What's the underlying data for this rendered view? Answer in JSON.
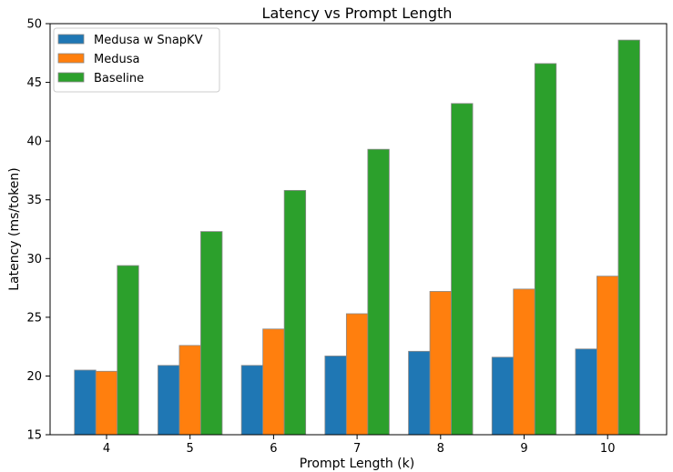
{
  "chart_data": {
    "type": "bar",
    "title": "Latency vs Prompt Length",
    "xlabel": "Prompt Length (k)",
    "ylabel": "Latency (ms/token)",
    "categories": [
      "4",
      "5",
      "6",
      "7",
      "8",
      "9",
      "10"
    ],
    "ylim": [
      15,
      50
    ],
    "yticks": [
      15,
      20,
      25,
      30,
      35,
      40,
      45,
      50
    ],
    "grid": false,
    "legend_position": "top-left",
    "series": [
      {
        "name": "Medusa w SnapKV",
        "color": "#1f77b4",
        "values": [
          20.5,
          20.9,
          20.9,
          21.7,
          22.1,
          21.6,
          22.3
        ]
      },
      {
        "name": "Medusa",
        "color": "#ff7f0e",
        "values": [
          20.4,
          22.6,
          24.0,
          25.3,
          27.2,
          27.4,
          28.5
        ]
      },
      {
        "name": "Baseline",
        "color": "#2ca02c",
        "values": [
          29.4,
          32.3,
          35.8,
          39.3,
          43.2,
          46.6,
          48.6
        ]
      }
    ]
  }
}
